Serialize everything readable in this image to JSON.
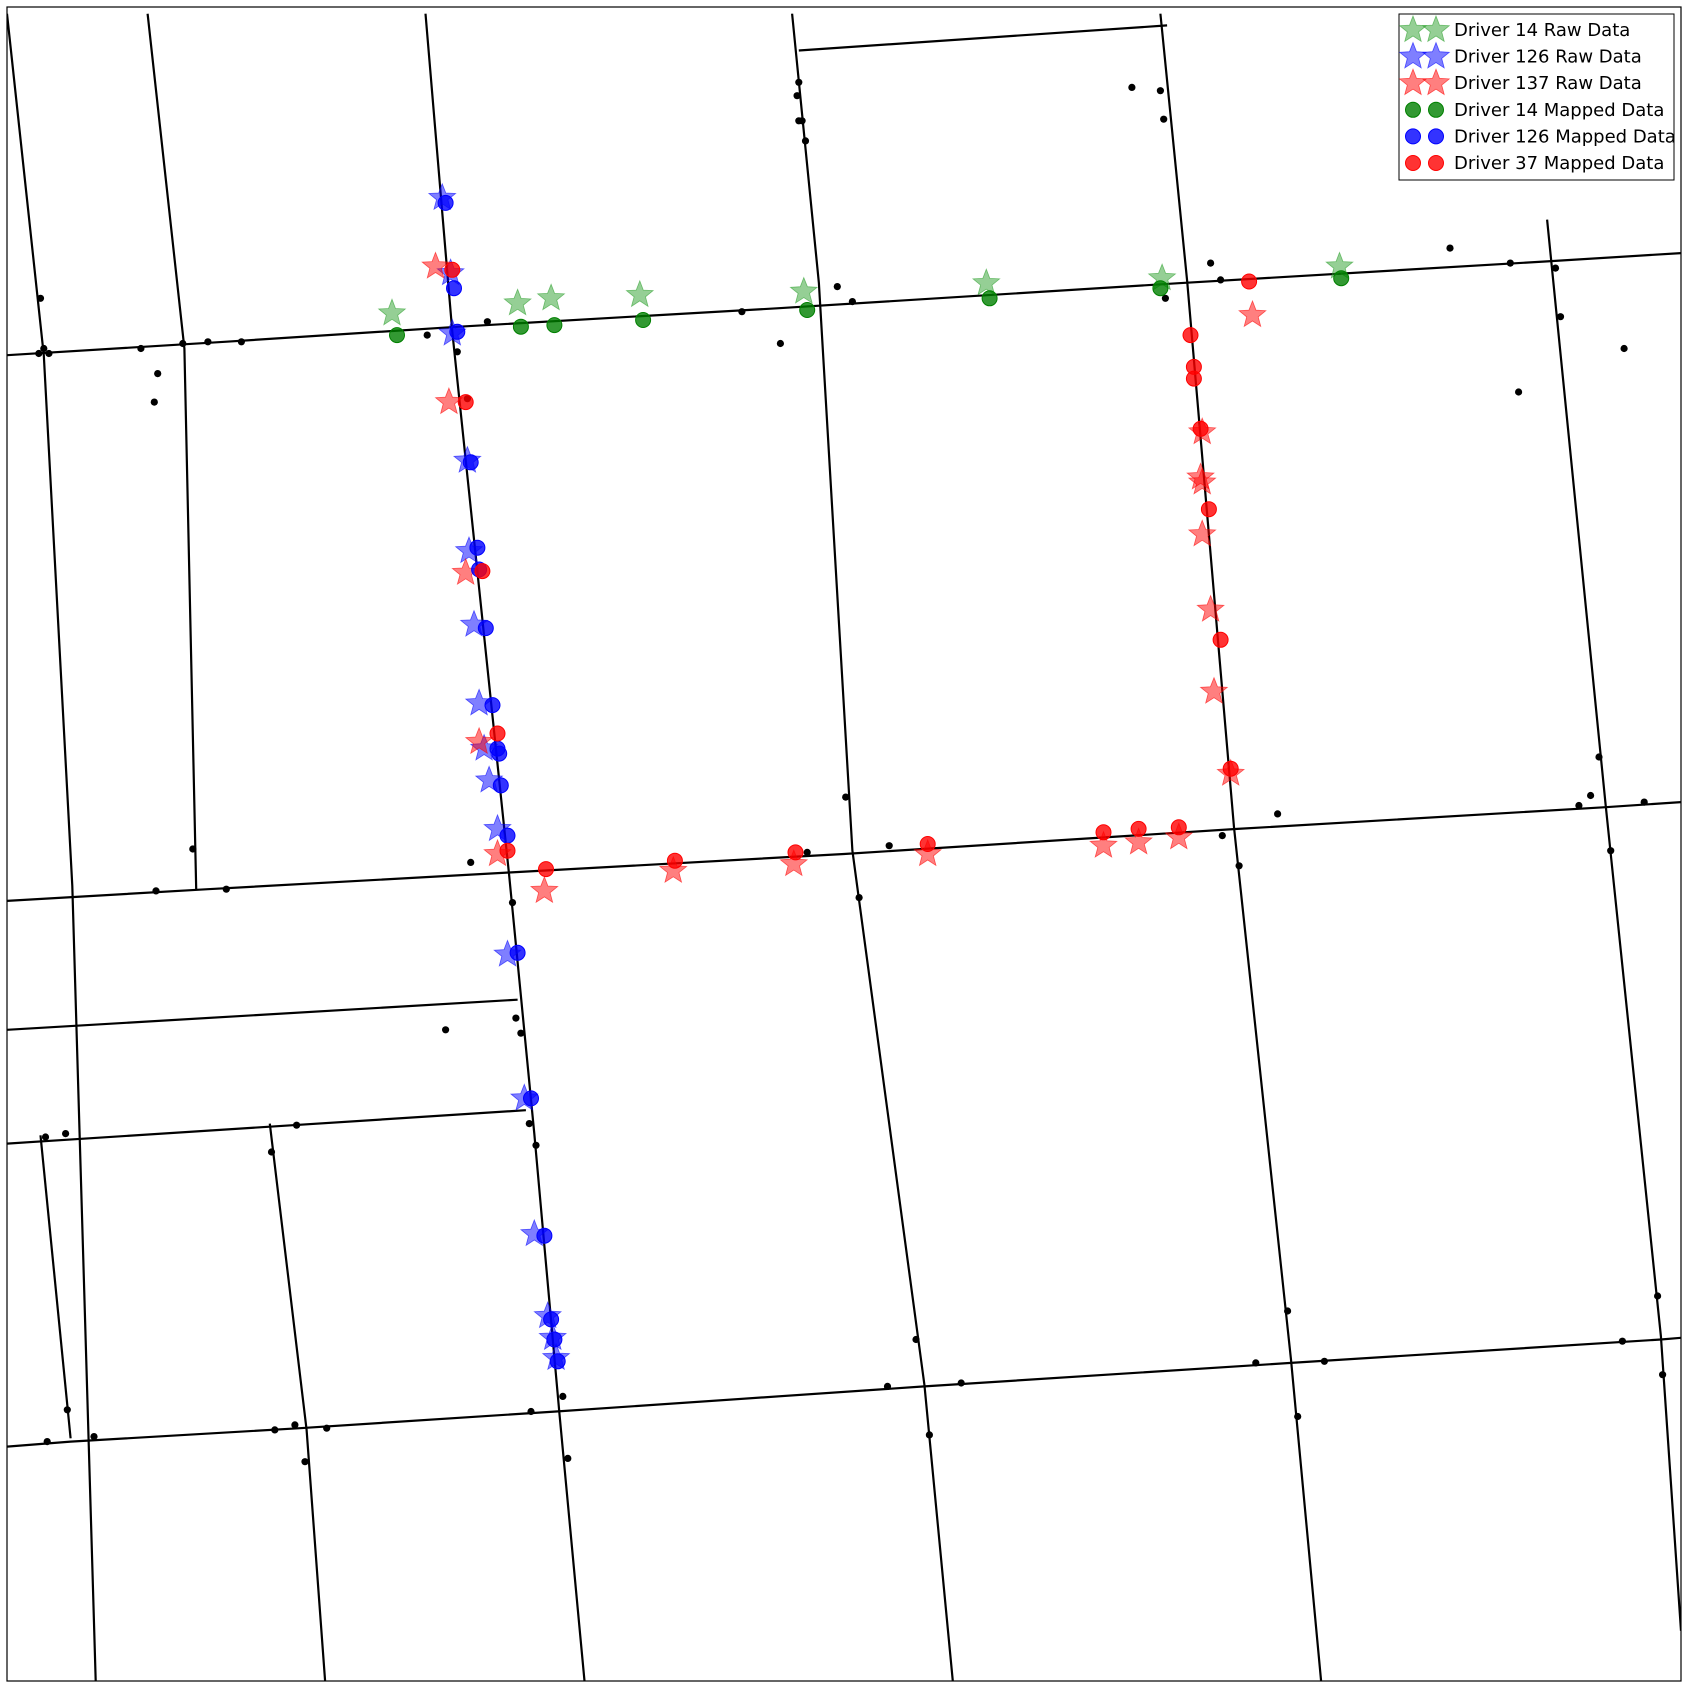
{
  "chart_data": {
    "type": "scatter",
    "title": "",
    "xlabel": "",
    "ylabel": "",
    "xlim": [
      0,
      100
    ],
    "ylim": [
      0,
      100
    ],
    "grid": false,
    "axes_ticks": "none",
    "legend": {
      "placement": "top-right",
      "entries": [
        {
          "label": "Driver 14 Raw Data",
          "marker": "star",
          "color": "#2ca02c",
          "alpha": 0.5
        },
        {
          "label": "Driver 126 Raw Data",
          "marker": "star",
          "color": "#0000ff",
          "alpha": 0.5
        },
        {
          "label": "Driver 137 Raw Data",
          "marker": "star",
          "color": "#ff0000",
          "alpha": 0.5
        },
        {
          "label": "Driver 14 Mapped Data",
          "marker": "circle",
          "color": "#008000",
          "alpha": 0.8
        },
        {
          "label": "Driver 126 Mapped Data",
          "marker": "circle",
          "color": "#0000ff",
          "alpha": 0.8
        },
        {
          "label": "Driver 37 Mapped Data",
          "marker": "circle",
          "color": "#ff0000",
          "alpha": 0.8
        }
      ]
    },
    "road_network": {
      "color": "#000000",
      "roads": [
        [
          [
            0,
            79.2
          ],
          [
            13,
            80.0
          ],
          [
            27,
            80.9
          ],
          [
            46,
            82.0
          ],
          [
            70,
            83.5
          ],
          [
            92,
            84.8
          ],
          [
            100,
            85.3
          ]
        ],
        [
          [
            0,
            46.6
          ],
          [
            12,
            47.3
          ],
          [
            30,
            48.3
          ],
          [
            50,
            49.4
          ],
          [
            73.5,
            50.9
          ],
          [
            95.5,
            52.2
          ],
          [
            100,
            52.5
          ]
        ],
        [
          [
            0,
            38.9
          ],
          [
            30.5,
            40.7
          ]
        ],
        [
          [
            0,
            32.1
          ],
          [
            31,
            34.1
          ]
        ],
        [
          [
            0,
            14.0
          ],
          [
            3.8,
            14.3
          ],
          [
            17.5,
            15.1
          ],
          [
            32.8,
            16.1
          ],
          [
            54.8,
            17.6
          ],
          [
            76.7,
            19.0
          ],
          [
            98.8,
            20.4
          ],
          [
            100,
            20.5
          ]
        ],
        [
          [
            47.3,
            97.4
          ],
          [
            69.3,
            98.9
          ]
        ],
        [
          [
            0,
            99.6
          ],
          [
            2.2,
            79.2
          ],
          [
            3.9,
            47.5
          ],
          [
            5.3,
            0
          ]
        ],
        [
          [
            8.4,
            99.6
          ],
          [
            10.6,
            79.6
          ],
          [
            11.3,
            47.3
          ]
        ],
        [
          [
            2.0,
            32.6
          ],
          [
            3.8,
            14.5
          ]
        ],
        [
          [
            15.7,
            33.3
          ],
          [
            17.9,
            15.0
          ],
          [
            19.0,
            0
          ]
        ],
        [
          [
            25.0,
            99.6
          ],
          [
            26.6,
            80.6
          ],
          [
            30.0,
            48.1
          ],
          [
            31.5,
            32.7
          ],
          [
            33.0,
            16.0
          ],
          [
            34.5,
            0
          ]
        ],
        [
          [
            46.9,
            99.6
          ],
          [
            48.5,
            83.5
          ],
          [
            50.5,
            49.6
          ],
          [
            54.8,
            17.7
          ],
          [
            56.5,
            0
          ]
        ],
        [
          [
            68.9,
            99.6
          ],
          [
            70.5,
            83.6
          ],
          [
            73.3,
            51.0
          ],
          [
            76.7,
            19.2
          ],
          [
            78.5,
            0
          ]
        ],
        [
          [
            92.0,
            87.3
          ],
          [
            95.5,
            52.3
          ],
          [
            98.8,
            20.6
          ],
          [
            100,
            3
          ]
        ]
      ],
      "nodes": [
        [
          2.0,
          82.6
        ],
        [
          2.2,
          79.6
        ],
        [
          1.9,
          79.3
        ],
        [
          2.5,
          79.3
        ],
        [
          8.0,
          79.6
        ],
        [
          9.0,
          78.1
        ],
        [
          10.5,
          79.9
        ],
        [
          12.0,
          80.0
        ],
        [
          14.0,
          80.0
        ],
        [
          25.1,
          80.4
        ],
        [
          28.7,
          81.2
        ],
        [
          26.9,
          79.4
        ],
        [
          43.9,
          81.8
        ],
        [
          46.2,
          79.9
        ],
        [
          50.5,
          82.4
        ],
        [
          47.2,
          94.7
        ],
        [
          47.5,
          93.2
        ],
        [
          47.7,
          92.0
        ],
        [
          67.2,
          95.2
        ],
        [
          68.9,
          95.0
        ],
        [
          69.1,
          93.3
        ],
        [
          72.5,
          83.7
        ],
        [
          69.2,
          82.6
        ],
        [
          71.9,
          84.7
        ],
        [
          8.8,
          76.4
        ],
        [
          11.1,
          49.7
        ],
        [
          8.9,
          47.2
        ],
        [
          13.1,
          47.3
        ],
        [
          27.5,
          76.6
        ],
        [
          27.7,
          48.9
        ],
        [
          30.2,
          46.5
        ],
        [
          30.4,
          39.6
        ],
        [
          30.7,
          38.7
        ],
        [
          50.1,
          52.8
        ],
        [
          47.8,
          49.5
        ],
        [
          52.7,
          49.9
        ],
        [
          50.9,
          46.8
        ],
        [
          75.9,
          51.8
        ],
        [
          73.6,
          48.7
        ],
        [
          72.6,
          50.5
        ],
        [
          95.1,
          55.2
        ],
        [
          93.9,
          52.3
        ],
        [
          97.8,
          52.5
        ],
        [
          95.8,
          49.6
        ],
        [
          26.2,
          38.9
        ],
        [
          31.2,
          33.3
        ],
        [
          31.6,
          32.0
        ],
        [
          17.3,
          33.2
        ],
        [
          15.8,
          31.6
        ],
        [
          2.3,
          32.5
        ],
        [
          3.5,
          32.7
        ],
        [
          3.6,
          16.2
        ],
        [
          2.4,
          14.3
        ],
        [
          5.2,
          14.6
        ],
        [
          17.2,
          15.3
        ],
        [
          16.0,
          15.0
        ],
        [
          19.1,
          15.1
        ],
        [
          17.8,
          13.1
        ],
        [
          31.3,
          16.1
        ],
        [
          33.5,
          13.3
        ],
        [
          33.2,
          17.0
        ],
        [
          52.6,
          17.6
        ],
        [
          57.0,
          17.8
        ],
        [
          54.3,
          20.4
        ],
        [
          55.1,
          14.7
        ],
        [
          74.6,
          19.0
        ],
        [
          78.7,
          19.1
        ],
        [
          76.5,
          22.1
        ],
        [
          77.1,
          15.8
        ],
        [
          98.6,
          23.0
        ],
        [
          96.5,
          20.3
        ],
        [
          98.9,
          18.3
        ],
        [
          92.5,
          84.4
        ],
        [
          92.8,
          81.5
        ],
        [
          49.6,
          83.3
        ],
        [
          86.2,
          85.6
        ],
        [
          89.8,
          84.7
        ],
        [
          92.6,
          89.9
        ],
        [
          90.3,
          77.0
        ],
        [
          96.6,
          79.6
        ],
        [
          94.6,
          52.9
        ],
        [
          47.3,
          95.5
        ],
        [
          47.3,
          93.2
        ]
      ]
    },
    "series": [
      {
        "name": "Driver 14 Raw Data",
        "marker": "star",
        "points": [
          [
            23.0,
            81.7
          ],
          [
            30.5,
            82.3
          ],
          [
            32.5,
            82.6
          ],
          [
            37.8,
            82.8
          ],
          [
            47.6,
            83.0
          ],
          [
            58.5,
            83.5
          ],
          [
            69.0,
            83.8
          ],
          [
            79.6,
            84.5
          ]
        ]
      },
      {
        "name": "Driver 126 Raw Data",
        "marker": "star",
        "points": [
          [
            26.0,
            88.6
          ],
          [
            26.5,
            84.1
          ],
          [
            26.6,
            80.5
          ],
          [
            27.5,
            72.9
          ],
          [
            27.6,
            67.5
          ],
          [
            27.9,
            63.1
          ],
          [
            28.2,
            58.4
          ],
          [
            28.5,
            55.7
          ],
          [
            28.8,
            53.8
          ],
          [
            29.3,
            50.9
          ],
          [
            29.9,
            43.4
          ],
          [
            30.9,
            34.8
          ],
          [
            31.5,
            26.7
          ],
          [
            32.3,
            21.8
          ],
          [
            32.6,
            20.5
          ],
          [
            32.8,
            19.3
          ]
        ]
      },
      {
        "name": "Driver 137 Raw Data",
        "marker": "star",
        "points": [
          [
            25.6,
            84.5
          ],
          [
            26.4,
            76.4
          ],
          [
            27.4,
            66.2
          ],
          [
            28.2,
            56.1
          ],
          [
            29.3,
            49.4
          ],
          [
            32.1,
            47.2
          ],
          [
            39.8,
            48.4
          ],
          [
            47.0,
            48.8
          ],
          [
            55.0,
            49.4
          ],
          [
            65.5,
            49.9
          ],
          [
            67.6,
            50.1
          ],
          [
            70.0,
            50.4
          ],
          [
            73.1,
            54.2
          ],
          [
            72.1,
            59.1
          ],
          [
            71.9,
            64.0
          ],
          [
            71.4,
            68.5
          ],
          [
            71.4,
            71.6
          ],
          [
            71.3,
            71.9
          ],
          [
            71.4,
            74.6
          ],
          [
            74.4,
            81.6
          ]
        ]
      },
      {
        "name": "Driver 14 Mapped Data",
        "marker": "circle",
        "points": [
          [
            23.3,
            80.4
          ],
          [
            30.7,
            80.9
          ],
          [
            32.7,
            81.0
          ],
          [
            38.0,
            81.3
          ],
          [
            47.8,
            81.9
          ],
          [
            58.7,
            82.6
          ],
          [
            68.9,
            83.2
          ],
          [
            79.7,
            83.8
          ]
        ]
      },
      {
        "name": "Driver 126 Mapped Data",
        "marker": "circle",
        "points": [
          [
            26.2,
            88.3
          ],
          [
            26.7,
            83.2
          ],
          [
            26.9,
            80.6
          ],
          [
            27.7,
            72.8
          ],
          [
            28.1,
            67.7
          ],
          [
            28.2,
            66.4
          ],
          [
            28.6,
            62.9
          ],
          [
            29.0,
            58.3
          ],
          [
            29.3,
            55.7
          ],
          [
            29.4,
            55.4
          ],
          [
            29.5,
            53.5
          ],
          [
            29.9,
            50.5
          ],
          [
            30.5,
            43.5
          ],
          [
            31.3,
            34.8
          ],
          [
            32.1,
            26.6
          ],
          [
            32.5,
            21.6
          ],
          [
            32.7,
            20.4
          ],
          [
            32.9,
            19.1
          ]
        ]
      },
      {
        "name": "Driver 37 Mapped Data",
        "marker": "circle",
        "points": [
          [
            26.6,
            84.3
          ],
          [
            27.4,
            76.4
          ],
          [
            28.4,
            66.3
          ],
          [
            29.3,
            56.6
          ],
          [
            29.9,
            49.6
          ],
          [
            32.2,
            48.5
          ],
          [
            39.9,
            49.0
          ],
          [
            47.1,
            49.5
          ],
          [
            55.0,
            50.0
          ],
          [
            65.5,
            50.7
          ],
          [
            67.6,
            50.9
          ],
          [
            70.0,
            51.0
          ],
          [
            74.2,
            83.6
          ],
          [
            70.7,
            80.4
          ],
          [
            70.9,
            78.5
          ],
          [
            70.9,
            77.8
          ],
          [
            71.3,
            74.8
          ],
          [
            71.8,
            70.0
          ],
          [
            72.5,
            62.2
          ],
          [
            73.1,
            54.5
          ]
        ]
      }
    ]
  }
}
